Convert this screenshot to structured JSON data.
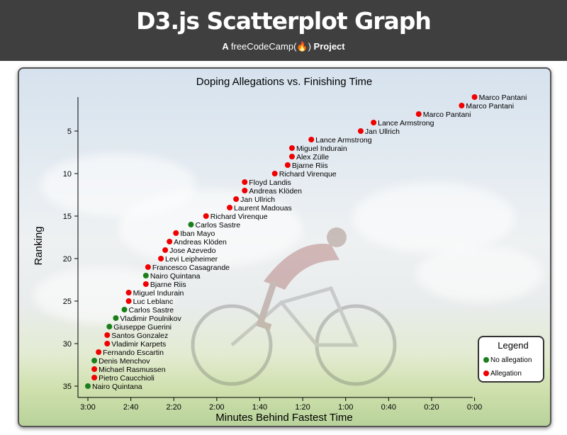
{
  "header": {
    "title": "D3.js Scatterplot Graph",
    "subtitle_prefix": "A",
    "subtitle_brand": "freeCodeCamp",
    "subtitle_flame": "(🔥)",
    "subtitle_suffix": "Project"
  },
  "colors": {
    "no_allegation": "#1a7f1a",
    "allegation": "#f00000",
    "header_bg": "#3f3f3f"
  },
  "chart_data": {
    "type": "scatter",
    "title": "Doping Allegations vs. Finishing Time",
    "xlabel": "Minutes Behind Fastest Time",
    "ylabel": "Ranking",
    "x_reversed": true,
    "xlim": [
      0,
      185
    ],
    "ylim": [
      1,
      35
    ],
    "x_ticks": [
      "3:00",
      "2:40",
      "2:20",
      "2:00",
      "1:40",
      "1:20",
      "1:00",
      "0:40",
      "0:20",
      "0:00"
    ],
    "x_tick_values": [
      180,
      160,
      140,
      120,
      100,
      80,
      60,
      40,
      20,
      0
    ],
    "y_ticks": [
      "5",
      "10",
      "15",
      "20",
      "25",
      "30",
      "35"
    ],
    "y_tick_values": [
      5,
      10,
      15,
      20,
      25,
      30,
      35
    ],
    "legend": {
      "title": "Legend",
      "items": [
        "No allegation",
        "Allegation"
      ],
      "placement": "bottom-right"
    },
    "points": [
      {
        "rank": 1,
        "seconds_behind": 0,
        "name": "Marco Pantani",
        "doping": true
      },
      {
        "rank": 2,
        "seconds_behind": 6,
        "name": "Marco Pantani",
        "doping": true
      },
      {
        "rank": 3,
        "seconds_behind": 26,
        "name": "Marco Pantani",
        "doping": true
      },
      {
        "rank": 4,
        "seconds_behind": 47,
        "name": "Lance Armstrong",
        "doping": true
      },
      {
        "rank": 5,
        "seconds_behind": 53,
        "name": "Jan Ullrich",
        "doping": true
      },
      {
        "rank": 6,
        "seconds_behind": 76,
        "name": "Lance Armstrong",
        "doping": true
      },
      {
        "rank": 7,
        "seconds_behind": 85,
        "name": "Miguel Indurain",
        "doping": true
      },
      {
        "rank": 8,
        "seconds_behind": 85,
        "name": "Alex Zülle",
        "doping": true
      },
      {
        "rank": 9,
        "seconds_behind": 87,
        "name": "Bjarne Riis",
        "doping": true
      },
      {
        "rank": 10,
        "seconds_behind": 93,
        "name": "Richard Virenque",
        "doping": true
      },
      {
        "rank": 11,
        "seconds_behind": 107,
        "name": "Floyd Landis",
        "doping": true
      },
      {
        "rank": 12,
        "seconds_behind": 107,
        "name": "Andreas Klöden",
        "doping": true
      },
      {
        "rank": 13,
        "seconds_behind": 111,
        "name": "Jan Ullrich",
        "doping": true
      },
      {
        "rank": 14,
        "seconds_behind": 114,
        "name": "Laurent Madouas",
        "doping": true
      },
      {
        "rank": 15,
        "seconds_behind": 125,
        "name": "Richard Virenque",
        "doping": true
      },
      {
        "rank": 16,
        "seconds_behind": 132,
        "name": "Carlos Sastre",
        "doping": false
      },
      {
        "rank": 17,
        "seconds_behind": 139,
        "name": "Iban Mayo",
        "doping": true
      },
      {
        "rank": 18,
        "seconds_behind": 142,
        "name": "Andreas Klöden",
        "doping": true
      },
      {
        "rank": 19,
        "seconds_behind": 144,
        "name": "Jose Azevedo",
        "doping": true
      },
      {
        "rank": 20,
        "seconds_behind": 146,
        "name": "Levi Leipheimer",
        "doping": true
      },
      {
        "rank": 21,
        "seconds_behind": 152,
        "name": "Francesco Casagrande",
        "doping": true
      },
      {
        "rank": 22,
        "seconds_behind": 153,
        "name": "Nairo Quintana",
        "doping": false
      },
      {
        "rank": 23,
        "seconds_behind": 153,
        "name": "Bjarne Riis",
        "doping": true
      },
      {
        "rank": 24,
        "seconds_behind": 161,
        "name": "Miguel Indurain",
        "doping": true
      },
      {
        "rank": 25,
        "seconds_behind": 161,
        "name": "Luc Leblanc",
        "doping": true
      },
      {
        "rank": 26,
        "seconds_behind": 163,
        "name": "Carlos Sastre",
        "doping": false
      },
      {
        "rank": 27,
        "seconds_behind": 167,
        "name": "Vladimir Poulnikov",
        "doping": false
      },
      {
        "rank": 28,
        "seconds_behind": 170,
        "name": "Giuseppe Guerini",
        "doping": false
      },
      {
        "rank": 29,
        "seconds_behind": 171,
        "name": "Santos Gonzalez",
        "doping": true
      },
      {
        "rank": 30,
        "seconds_behind": 171,
        "name": "Vladimir Karpets",
        "doping": true
      },
      {
        "rank": 31,
        "seconds_behind": 175,
        "name": "Fernando Escartin",
        "doping": true
      },
      {
        "rank": 32,
        "seconds_behind": 177,
        "name": "Denis Menchov",
        "doping": false
      },
      {
        "rank": 33,
        "seconds_behind": 177,
        "name": "Michael Rasmussen",
        "doping": true
      },
      {
        "rank": 34,
        "seconds_behind": 177,
        "name": "Pietro Caucchioli",
        "doping": true
      },
      {
        "rank": 35,
        "seconds_behind": 180,
        "name": "Nairo Quintana",
        "doping": false
      }
    ]
  }
}
